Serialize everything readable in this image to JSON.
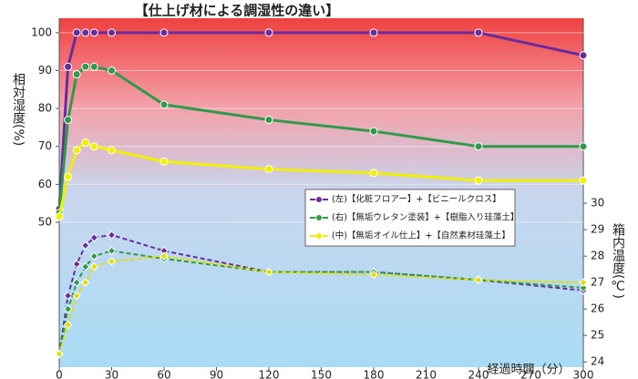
{
  "chart_data": {
    "type": "line",
    "title": "【仕上げ材による調湿性の違い】",
    "y_label": "相対湿度(%)",
    "y2_label": "箱内温度(℃)",
    "x_label": "経過時間（分）",
    "x": [
      0,
      5,
      10,
      15,
      20,
      30,
      60,
      120,
      180,
      240,
      300
    ],
    "xlim": [
      0,
      300
    ],
    "xticks": [
      0,
      30,
      60,
      90,
      120,
      150,
      180,
      210,
      240,
      270,
      300
    ],
    "ylim": [
      11.8,
      103.8
    ],
    "yticks": [
      50,
      60,
      70,
      80,
      90,
      100
    ],
    "y2lim": [
      23.8,
      37.0
    ],
    "y2ticks": [
      24,
      25,
      26,
      27,
      28,
      29,
      30
    ],
    "grid": true,
    "legend": "right",
    "series": [
      {
        "name": "(左)【化粧フロアー】+【ビニールクロス】",
        "color": "#6a2c9c",
        "values": [
          53.5,
          91,
          100,
          100,
          100,
          100,
          100,
          100,
          100,
          100,
          94
        ]
      },
      {
        "name": "(右)【無垢ウレタン塗装】+【樹脂入り珪藻土】",
        "color": "#2e9a4a",
        "values": [
          52.5,
          77,
          89,
          91,
          91,
          90,
          81,
          77,
          74,
          70,
          70
        ]
      },
      {
        "name": "(中)【無垢オイル仕上】+【自然素材珪藻土】",
        "color": "#f0f000",
        "values": [
          51.5,
          62,
          69,
          71,
          70,
          69,
          66,
          64,
          63,
          61,
          61
        ]
      },
      {
        "color": "#6a2c9c",
        "axis": "y2",
        "dashed": true,
        "values": [
          24.3,
          26.5,
          27.7,
          28.4,
          28.7,
          28.8,
          28.2,
          27.4,
          27.4,
          27.1,
          26.7
        ]
      },
      {
        "color": "#2e9a4a",
        "axis": "y2",
        "dashed": true,
        "values": [
          24.3,
          26.0,
          27.0,
          27.6,
          28.0,
          28.2,
          27.9,
          27.4,
          27.4,
          27.1,
          26.8
        ]
      },
      {
        "color": "#e0e000",
        "axis": "y2",
        "dashed": true,
        "values": [
          24.3,
          25.4,
          26.5,
          27.0,
          27.6,
          27.8,
          28.0,
          27.4,
          27.3,
          27.1,
          27.0
        ]
      }
    ]
  }
}
